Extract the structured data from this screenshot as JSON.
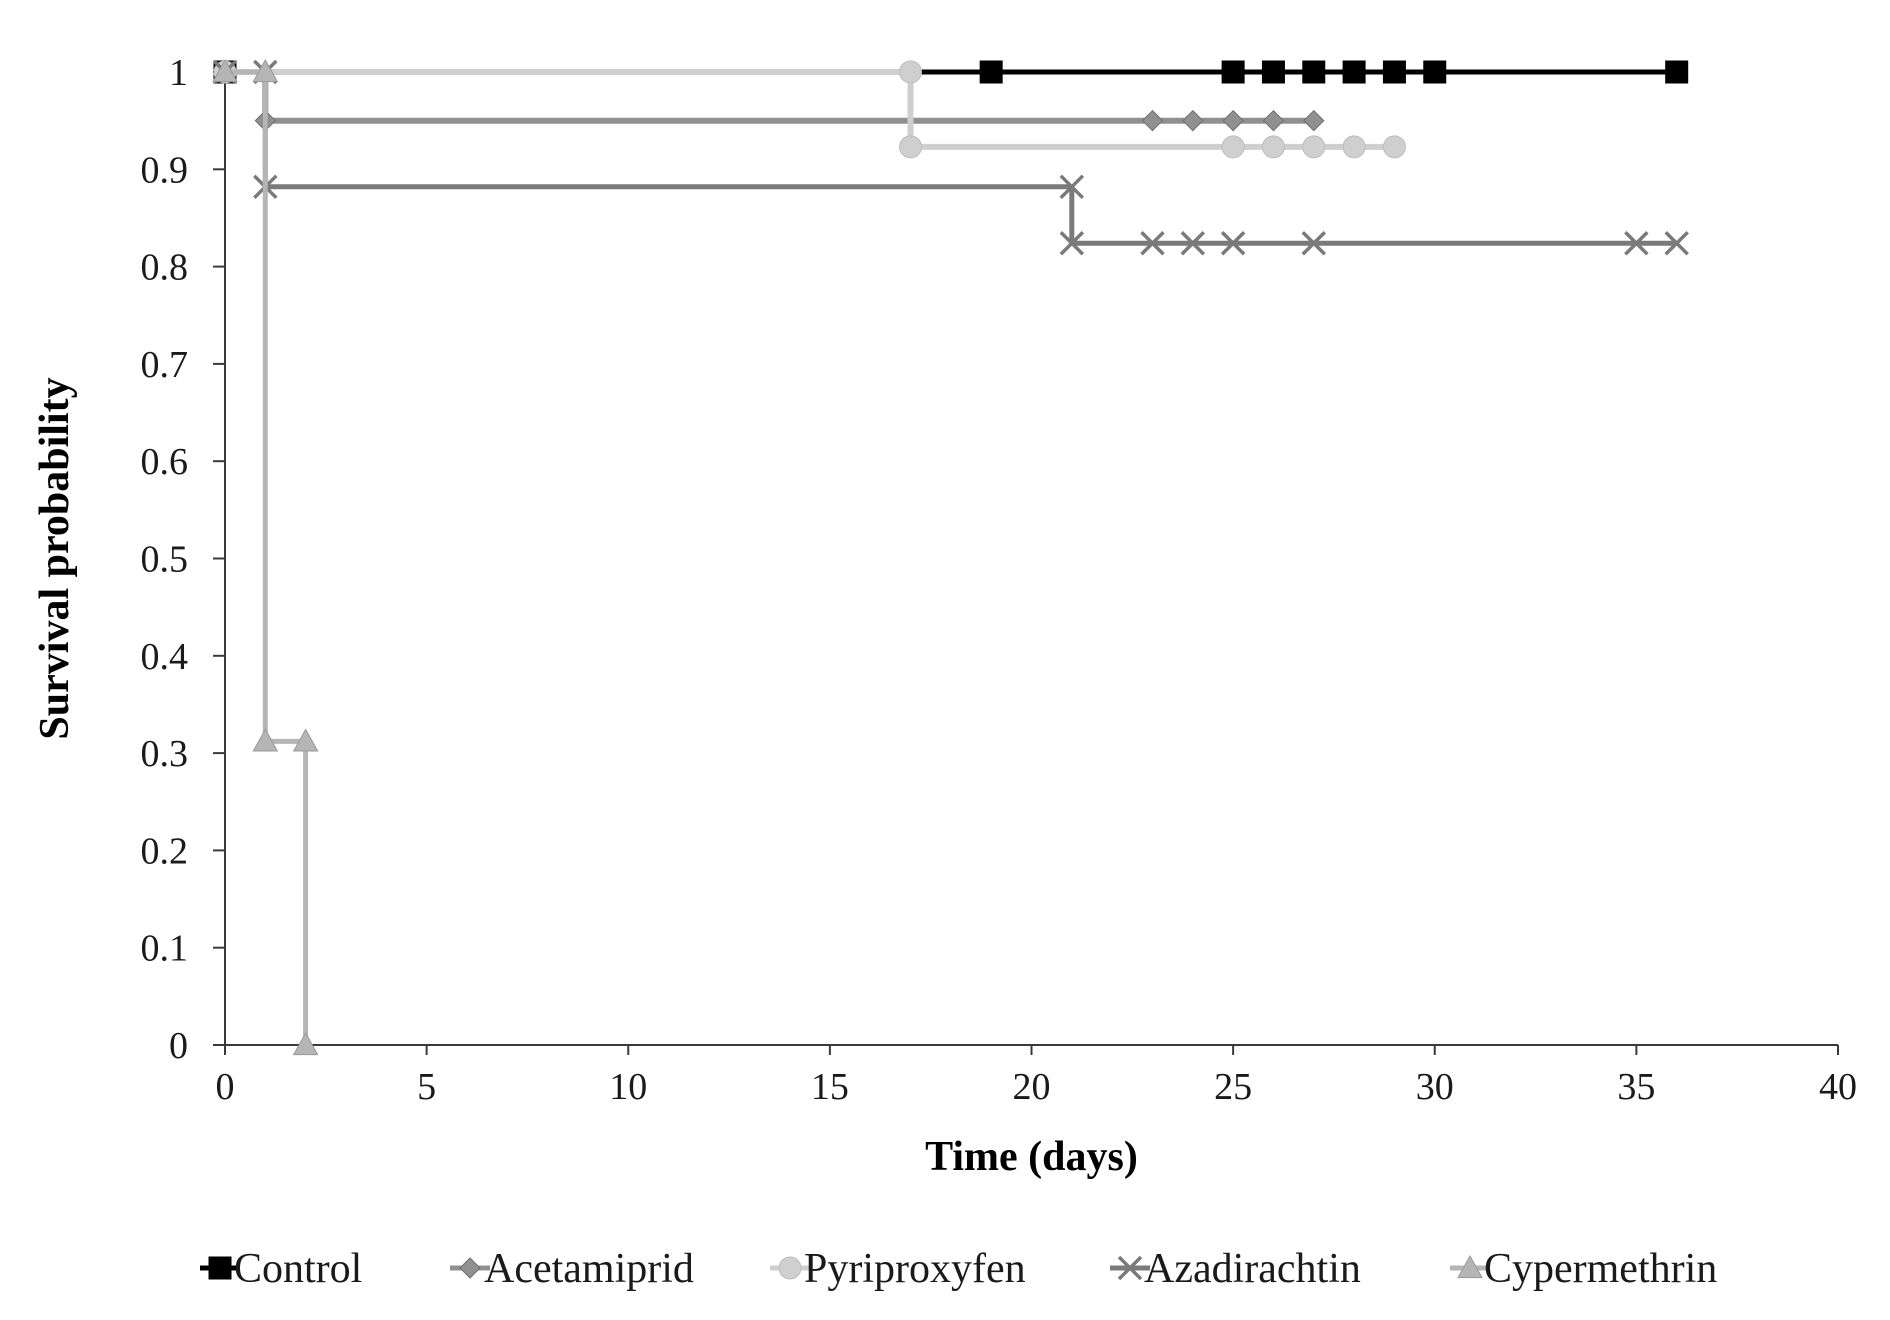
{
  "chart_data": {
    "type": "line",
    "step": true,
    "xlabel": "Time (days)",
    "ylabel": "Survival probability",
    "xlim": [
      0,
      40
    ],
    "ylim": [
      0,
      1
    ],
    "x_ticks": [
      0,
      5,
      10,
      15,
      20,
      25,
      30,
      35,
      40
    ],
    "x_tick_labels": [
      "0",
      "5",
      "10",
      "15",
      "20",
      "25",
      "30",
      "35",
      "40"
    ],
    "y_ticks": [
      0,
      0.1,
      0.2,
      0.3,
      0.4,
      0.5,
      0.6,
      0.7,
      0.8,
      0.9,
      1
    ],
    "y_tick_labels": [
      "0",
      "0.1",
      "0.2",
      "0.3",
      "0.4",
      "0.5",
      "0.6",
      "0.7",
      "0.8",
      "0.9",
      "1"
    ],
    "grid": false,
    "legend_position": "bottom",
    "series": [
      {
        "name": "Control",
        "marker": "square",
        "color": "#000000",
        "line": [
          [
            0,
            1
          ],
          [
            36,
            1
          ]
        ],
        "points": [
          [
            0,
            1
          ],
          [
            19,
            1
          ],
          [
            25,
            1
          ],
          [
            26,
            1
          ],
          [
            27,
            1
          ],
          [
            28,
            1
          ],
          [
            29,
            1
          ],
          [
            30,
            1
          ],
          [
            36,
            1
          ]
        ]
      },
      {
        "name": "Acetamiprid",
        "marker": "diamond",
        "color": "#909090",
        "line": [
          [
            0,
            1
          ],
          [
            1,
            1
          ],
          [
            1,
            0.95
          ],
          [
            27,
            0.95
          ]
        ],
        "points": [
          [
            0,
            1
          ],
          [
            1,
            0.95
          ],
          [
            23,
            0.95
          ],
          [
            24,
            0.95
          ],
          [
            25,
            0.95
          ],
          [
            26,
            0.95
          ],
          [
            27,
            0.95
          ]
        ]
      },
      {
        "name": "Pyriproxyfen",
        "marker": "circle",
        "color": "#cfcfcf",
        "line": [
          [
            0,
            1
          ],
          [
            17,
            1
          ],
          [
            17,
            0.923
          ],
          [
            29,
            0.923
          ]
        ],
        "points": [
          [
            0,
            1
          ],
          [
            17,
            1
          ],
          [
            17,
            0.923
          ],
          [
            25,
            0.923
          ],
          [
            26,
            0.923
          ],
          [
            27,
            0.923
          ],
          [
            28,
            0.923
          ],
          [
            29,
            0.923
          ]
        ]
      },
      {
        "name": "Azadirachtin",
        "marker": "x",
        "color": "#7a7a7a",
        "line": [
          [
            0,
            1
          ],
          [
            1,
            1
          ],
          [
            1,
            0.882
          ],
          [
            21,
            0.882
          ],
          [
            21,
            0.824
          ],
          [
            36,
            0.824
          ]
        ],
        "points": [
          [
            0,
            1
          ],
          [
            1,
            1
          ],
          [
            1,
            0.882
          ],
          [
            21,
            0.882
          ],
          [
            21,
            0.824
          ],
          [
            23,
            0.824
          ],
          [
            24,
            0.824
          ],
          [
            25,
            0.824
          ],
          [
            27,
            0.824
          ],
          [
            35,
            0.824
          ],
          [
            36,
            0.824
          ]
        ]
      },
      {
        "name": "Cypermethrin",
        "marker": "triangle",
        "color": "#b5b5b5",
        "line": [
          [
            0,
            1
          ],
          [
            1,
            1
          ],
          [
            1,
            0.312
          ],
          [
            2,
            0.312
          ],
          [
            2,
            0
          ]
        ],
        "points": [
          [
            0,
            1
          ],
          [
            1,
            1
          ],
          [
            1,
            0.312
          ],
          [
            2,
            0.312
          ],
          [
            2,
            0
          ]
        ]
      }
    ]
  }
}
